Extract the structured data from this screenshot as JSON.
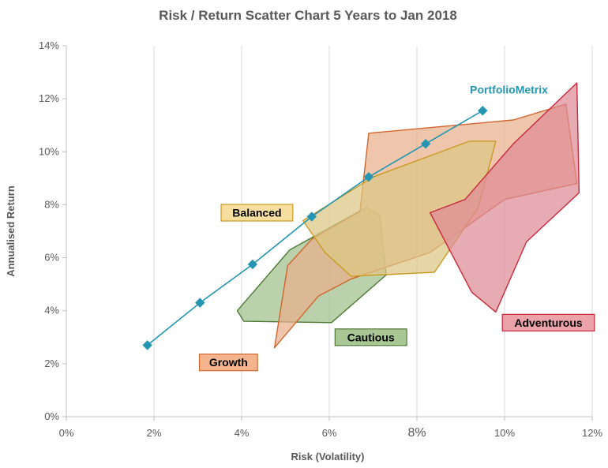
{
  "chart_data": {
    "type": "scatter",
    "title": "Risk / Return Scatter Chart 5 Years to Jan 2018",
    "xlabel": "Risk (Volatility)",
    "ylabel": "Annualised Return",
    "xlim": [
      0,
      12
    ],
    "ylim": [
      0,
      14
    ],
    "x_ticks": [
      "0%",
      "2%",
      "4%",
      "6%",
      "8%",
      "10%",
      "12%"
    ],
    "y_ticks": [
      "0%",
      "2%",
      "4%",
      "6%",
      "8%",
      "10%",
      "12%",
      "14%"
    ],
    "grid": "vertical",
    "line_series": {
      "name": "PortfolioMetrix",
      "color": "#2596b1",
      "points": [
        {
          "x": 1.85,
          "y": 2.7
        },
        {
          "x": 3.05,
          "y": 4.3
        },
        {
          "x": 4.25,
          "y": 5.75
        },
        {
          "x": 5.6,
          "y": 7.55
        },
        {
          "x": 6.9,
          "y": 9.05
        },
        {
          "x": 8.2,
          "y": 10.3
        },
        {
          "x": 9.5,
          "y": 11.55
        }
      ]
    },
    "regions": [
      {
        "name": "Cautious",
        "fill": "#9fbf8c",
        "stroke": "#4e7a35",
        "points": [
          [
            3.9,
            4.0
          ],
          [
            4.05,
            3.6
          ],
          [
            6.05,
            3.55
          ],
          [
            7.3,
            5.35
          ],
          [
            7.15,
            7.6
          ],
          [
            6.85,
            7.9
          ],
          [
            5.1,
            6.3
          ]
        ]
      },
      {
        "name": "Growth",
        "fill": "#e9b08c",
        "stroke": "#d0662f",
        "points": [
          [
            4.75,
            2.6
          ],
          [
            5.05,
            5.7
          ],
          [
            5.6,
            6.7
          ],
          [
            6.7,
            7.75
          ],
          [
            6.9,
            10.7
          ],
          [
            10.2,
            11.2
          ],
          [
            11.4,
            11.8
          ],
          [
            11.65,
            8.8
          ],
          [
            10.0,
            8.2
          ],
          [
            8.3,
            6.2
          ],
          [
            6.5,
            5.2
          ],
          [
            5.75,
            4.55
          ]
        ]
      },
      {
        "name": "Balanced",
        "fill": "#ddc684",
        "stroke": "#c89a22",
        "points": [
          [
            5.4,
            7.4
          ],
          [
            7.0,
            9.05
          ],
          [
            9.2,
            10.4
          ],
          [
            9.8,
            10.4
          ],
          [
            9.4,
            7.9
          ],
          [
            8.4,
            5.45
          ],
          [
            6.5,
            5.3
          ],
          [
            5.9,
            6.2
          ]
        ]
      },
      {
        "name": "Adventurous",
        "fill": "#de8a96",
        "stroke": "#c7293d",
        "points": [
          [
            8.3,
            7.7
          ],
          [
            9.1,
            8.2
          ],
          [
            10.2,
            10.3
          ],
          [
            11.65,
            12.6
          ],
          [
            11.7,
            8.45
          ],
          [
            10.5,
            6.6
          ],
          [
            9.8,
            3.95
          ],
          [
            9.25,
            4.7
          ]
        ]
      }
    ],
    "labels": [
      {
        "text": "PortfolioMetrix",
        "x": 10.1,
        "y": 12.35,
        "color": "#2596b1"
      },
      {
        "text": "Balanced",
        "x": 4.35,
        "y": 7.7,
        "fill": "#f6df9e",
        "stroke": "#c89a22"
      },
      {
        "text": "Cautious",
        "x": 6.95,
        "y": 3.0,
        "fill": "#a8c795",
        "stroke": "#4e7a35"
      },
      {
        "text": "Growth",
        "x": 3.7,
        "y": 2.05,
        "fill": "#f4b48e",
        "stroke": "#d0662f"
      },
      {
        "text": "Adventurous",
        "x": 11.0,
        "y": 3.55,
        "fill": "#eba2a9",
        "stroke": "#c7293d"
      }
    ]
  }
}
